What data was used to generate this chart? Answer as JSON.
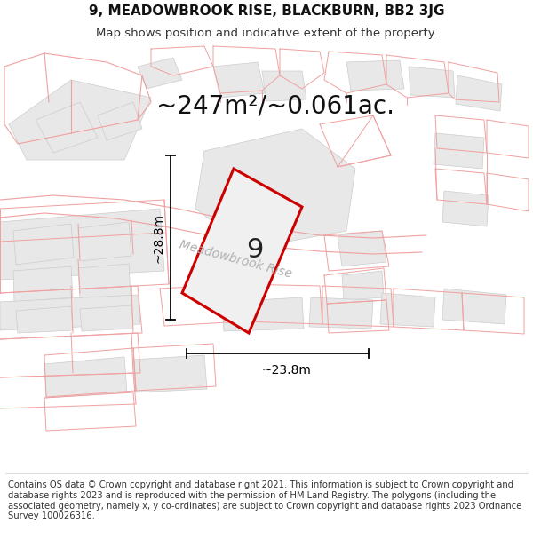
{
  "title": "9, MEADOWBROOK RISE, BLACKBURN, BB2 3JG",
  "subtitle": "Map shows position and indicative extent of the property.",
  "area_label": "~247m²/~0.061ac.",
  "property_number": "9",
  "dim_vertical": "~28.8m",
  "dim_horizontal": "~23.8m",
  "street_label": "Meadowbrook Rise",
  "footer": "Contains OS data © Crown copyright and database right 2021. This information is subject to Crown copyright and database rights 2023 and is reproduced with the permission of HM Land Registry. The polygons (including the associated geometry, namely x, y co-ordinates) are subject to Crown copyright and database rights 2023 Ordnance Survey 100026316.",
  "background_color": "#ffffff",
  "plot_color": "#f5f5f5",
  "plot_edge_color": "#cc0000",
  "neighbor_fill": "#e8e8e8",
  "neighbor_edge_color": "#cccccc",
  "pink": "#f0a0a0",
  "title_fontsize": 11,
  "subtitle_fontsize": 9.5,
  "footer_fontsize": 7.2,
  "area_fontsize": 20,
  "dim_fontsize": 10,
  "street_fontsize": 10,
  "number_fontsize": 22
}
